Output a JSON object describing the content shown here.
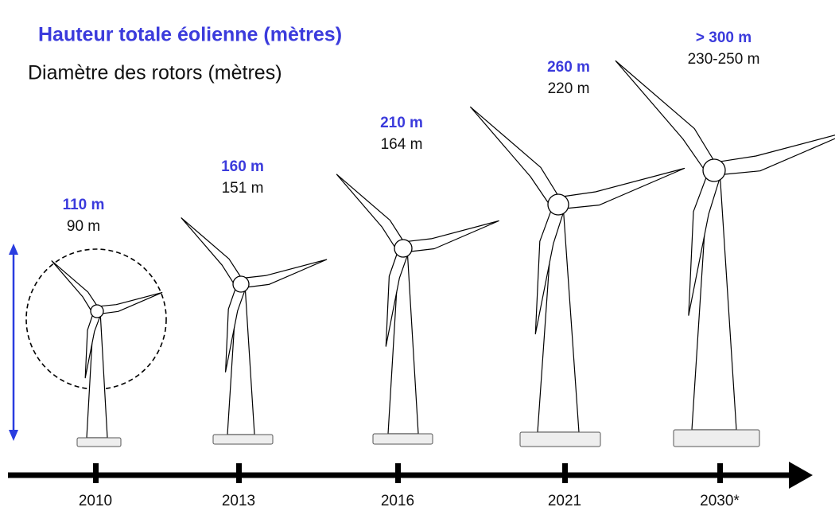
{
  "legend": {
    "height_label": "Hauteur totale éolienne (mètres)",
    "diameter_label": "Diamètre des rotors (mètres)"
  },
  "turbines": [
    {
      "year": "2010",
      "height": "110 m",
      "diameter": "90 m"
    },
    {
      "year": "2013",
      "height": "160 m",
      "diameter": "151 m"
    },
    {
      "year": "2016",
      "height": "210 m",
      "diameter": "164 m"
    },
    {
      "year": "2021",
      "height": "260 m",
      "diameter": "220 m"
    },
    {
      "year": "2030*",
      "height": "> 300 m",
      "diameter": "230-250 m"
    }
  ]
}
